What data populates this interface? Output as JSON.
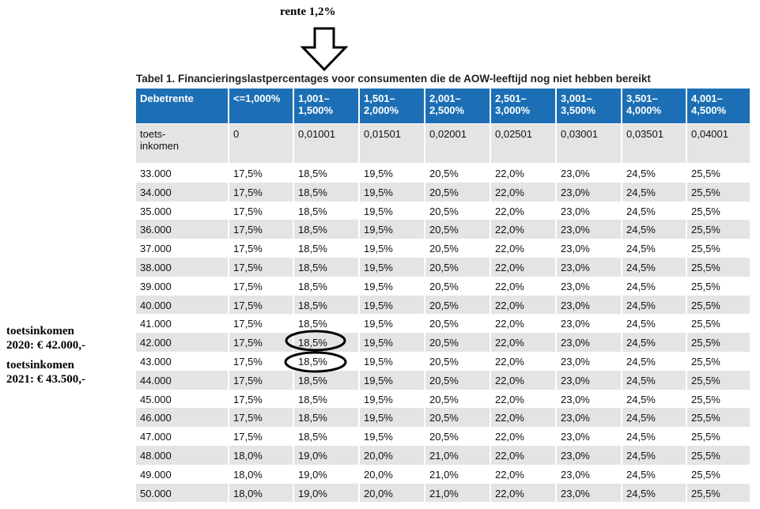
{
  "annotation_top": "rente 1,2%",
  "annotations_left": [
    "toetsinkomen\n2020: € 42.000,-",
    "toetsinkomen\n2021: € 43.500,-"
  ],
  "table": {
    "caption": "Tabel 1. Financieringslastpercentages voor consumenten die de AOW-leeftijd nog niet hebben bereikt",
    "header": [
      "Debetrente",
      "<=1,000%",
      "1,001–\n1,500%",
      "1,501–\n2,000%",
      "2,001–\n2,500%",
      "2,501–\n3,000%",
      "3,001–\n3,500%",
      "3,501–\n4,000%",
      "4,001–\n4,500%"
    ],
    "subheader": [
      "toets-\ninkomen",
      "0",
      "0,01001",
      "0,01501",
      "0,02001",
      "0,02501",
      "0,03001",
      "0,03501",
      "0,04001"
    ],
    "rows": [
      [
        "33.000",
        "17,5%",
        "18,5%",
        "19,5%",
        "20,5%",
        "22,0%",
        "23,0%",
        "24,5%",
        "25,5%"
      ],
      [
        "34.000",
        "17,5%",
        "18,5%",
        "19,5%",
        "20,5%",
        "22,0%",
        "23,0%",
        "24,5%",
        "25,5%"
      ],
      [
        "35.000",
        "17,5%",
        "18,5%",
        "19,5%",
        "20,5%",
        "22,0%",
        "23,0%",
        "24,5%",
        "25,5%"
      ],
      [
        "36.000",
        "17,5%",
        "18,5%",
        "19,5%",
        "20,5%",
        "22,0%",
        "23,0%",
        "24,5%",
        "25,5%"
      ],
      [
        "37.000",
        "17,5%",
        "18,5%",
        "19,5%",
        "20,5%",
        "22,0%",
        "23,0%",
        "24,5%",
        "25,5%"
      ],
      [
        "38.000",
        "17,5%",
        "18,5%",
        "19,5%",
        "20,5%",
        "22,0%",
        "23,0%",
        "24,5%",
        "25,5%"
      ],
      [
        "39.000",
        "17,5%",
        "18,5%",
        "19,5%",
        "20,5%",
        "22,0%",
        "23,0%",
        "24,5%",
        "25,5%"
      ],
      [
        "40.000",
        "17,5%",
        "18,5%",
        "19,5%",
        "20,5%",
        "22,0%",
        "23,0%",
        "24,5%",
        "25,5%"
      ],
      [
        "41.000",
        "17,5%",
        "18,5%",
        "19,5%",
        "20,5%",
        "22,0%",
        "23,0%",
        "24,5%",
        "25,5%"
      ],
      [
        "42.000",
        "17,5%",
        "18,5%",
        "19,5%",
        "20,5%",
        "22,0%",
        "23,0%",
        "24,5%",
        "25,5%"
      ],
      [
        "43.000",
        "17,5%",
        "18,5%",
        "19,5%",
        "20,5%",
        "22,0%",
        "23,0%",
        "24,5%",
        "25,5%"
      ],
      [
        "44.000",
        "17,5%",
        "18,5%",
        "19,5%",
        "20,5%",
        "22,0%",
        "23,0%",
        "24,5%",
        "25,5%"
      ],
      [
        "45.000",
        "17,5%",
        "18,5%",
        "19,5%",
        "20,5%",
        "22,0%",
        "23,0%",
        "24,5%",
        "25,5%"
      ],
      [
        "46.000",
        "17,5%",
        "18,5%",
        "19,5%",
        "20,5%",
        "22,0%",
        "23,0%",
        "24,5%",
        "25,5%"
      ],
      [
        "47.000",
        "17,5%",
        "18,5%",
        "19,5%",
        "20,5%",
        "22,0%",
        "23,0%",
        "24,5%",
        "25,5%"
      ],
      [
        "48.000",
        "18,0%",
        "19,0%",
        "20,0%",
        "21,0%",
        "22,0%",
        "23,0%",
        "24,5%",
        "25,5%"
      ],
      [
        "49.000",
        "18,0%",
        "19,0%",
        "20,0%",
        "21,0%",
        "22,0%",
        "23,0%",
        "24,5%",
        "25,5%"
      ],
      [
        "50.000",
        "18,0%",
        "19,0%",
        "20,0%",
        "21,0%",
        "22,0%",
        "23,0%",
        "24,5%",
        "25,5%"
      ]
    ]
  }
}
